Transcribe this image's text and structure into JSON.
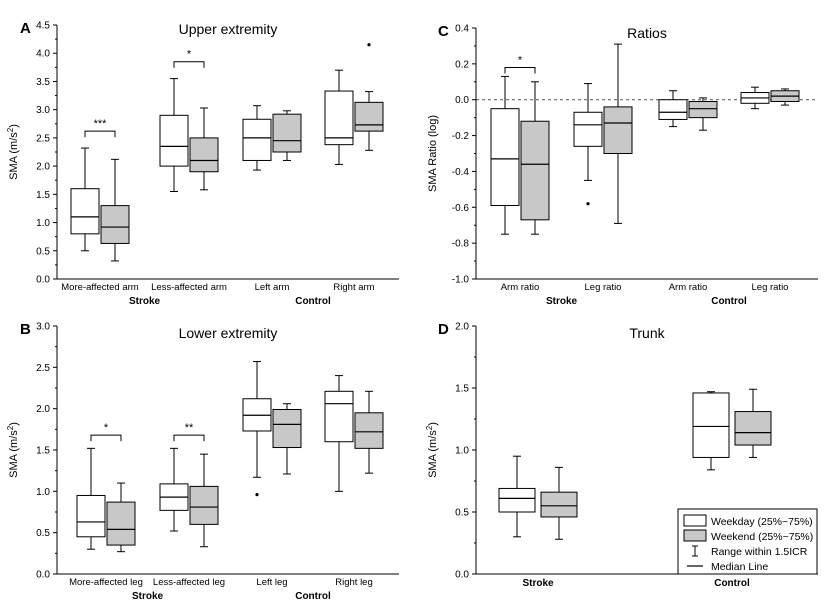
{
  "chart_data": [
    {
      "type": "box",
      "panel": "A",
      "title": "Upper extremity",
      "ylabel": "SMA (m/s",
      "ylabel_sup": "2",
      "ylabel_end": ")",
      "ylim": [
        0,
        4.5
      ],
      "yticks": [
        "0.0",
        "0.5",
        "1.0",
        "1.5",
        "2.0",
        "2.5",
        "3.0",
        "3.5",
        "4.0",
        "4.5"
      ],
      "categories": [
        "More-affected arm",
        "Less-affected arm",
        "Left arm",
        "Right arm"
      ],
      "groups": [
        {
          "label": "Stroke",
          "categories": [
            0,
            1
          ]
        },
        {
          "label": "Control",
          "categories": [
            2,
            3
          ]
        }
      ],
      "series": [
        {
          "name": "Weekday",
          "boxes": [
            {
              "min": 0.5,
              "q1": 0.8,
              "median": 1.1,
              "q3": 1.6,
              "max": 2.32,
              "outliers": []
            },
            {
              "min": 1.55,
              "q1": 2.0,
              "median": 2.35,
              "q3": 2.9,
              "max": 3.55,
              "outliers": []
            },
            {
              "min": 1.93,
              "q1": 2.1,
              "median": 2.5,
              "q3": 2.83,
              "max": 3.07,
              "outliers": []
            },
            {
              "min": 2.03,
              "q1": 2.38,
              "median": 2.5,
              "q3": 3.33,
              "max": 3.7,
              "outliers": []
            }
          ]
        },
        {
          "name": "Weekend",
          "boxes": [
            {
              "min": 0.32,
              "q1": 0.63,
              "median": 0.92,
              "q3": 1.3,
              "max": 2.12,
              "outliers": []
            },
            {
              "min": 1.58,
              "q1": 1.9,
              "median": 2.1,
              "q3": 2.5,
              "max": 3.03,
              "outliers": []
            },
            {
              "min": 2.1,
              "q1": 2.25,
              "median": 2.45,
              "q3": 2.92,
              "max": 2.98,
              "outliers": []
            },
            {
              "min": 2.28,
              "q1": 2.62,
              "median": 2.73,
              "q3": 3.13,
              "max": 3.32,
              "outliers": [
                4.15
              ]
            }
          ]
        }
      ],
      "significance": [
        {
          "category": 0,
          "label": "***",
          "y": 2.62
        },
        {
          "category": 1,
          "label": "*",
          "y": 3.85
        }
      ]
    },
    {
      "type": "box",
      "panel": "B",
      "title": "Lower extremity",
      "ylabel": "SMA (m/s",
      "ylabel_sup": "2",
      "ylabel_end": ")",
      "ylim": [
        0,
        3.0
      ],
      "yticks": [
        "0.0",
        "0.5",
        "1.0",
        "1.5",
        "2.0",
        "2.5",
        "3.0"
      ],
      "categories": [
        "More-affected leg",
        "Less-affected leg",
        "Left leg",
        "Right leg"
      ],
      "groups": [
        {
          "label": "Stroke",
          "categories": [
            0,
            1
          ]
        },
        {
          "label": "Control",
          "categories": [
            2,
            3
          ]
        }
      ],
      "series": [
        {
          "name": "Weekday",
          "boxes": [
            {
              "min": 0.3,
              "q1": 0.45,
              "median": 0.63,
              "q3": 0.95,
              "max": 1.52,
              "outliers": []
            },
            {
              "min": 0.52,
              "q1": 0.77,
              "median": 0.93,
              "q3": 1.09,
              "max": 1.52,
              "outliers": []
            },
            {
              "min": 1.17,
              "q1": 1.73,
              "median": 1.92,
              "q3": 2.12,
              "max": 2.57,
              "outliers": [
                0.96
              ]
            },
            {
              "min": 1.0,
              "q1": 1.6,
              "median": 2.06,
              "q3": 2.21,
              "max": 2.4,
              "outliers": []
            }
          ]
        },
        {
          "name": "Weekend",
          "boxes": [
            {
              "min": 0.27,
              "q1": 0.35,
              "median": 0.54,
              "q3": 0.87,
              "max": 1.1,
              "outliers": []
            },
            {
              "min": 0.33,
              "q1": 0.6,
              "median": 0.81,
              "q3": 1.06,
              "max": 1.45,
              "outliers": []
            },
            {
              "min": 1.21,
              "q1": 1.53,
              "median": 1.81,
              "q3": 1.99,
              "max": 2.06,
              "outliers": []
            },
            {
              "min": 1.22,
              "q1": 1.52,
              "median": 1.72,
              "q3": 1.95,
              "max": 2.21,
              "outliers": []
            }
          ]
        }
      ],
      "significance": [
        {
          "category": 0,
          "label": "*",
          "y": 1.68
        },
        {
          "category": 1,
          "label": "**",
          "y": 1.68
        }
      ]
    },
    {
      "type": "box",
      "panel": "C",
      "title": "Ratios",
      "ylabel": "SMA Ratio (log)",
      "ylim": [
        -1.0,
        0.4
      ],
      "yticks": [
        "-1.0",
        "-0.8",
        "-0.6",
        "-0.4",
        "-0.2",
        "0.0",
        "0.2",
        "0.4"
      ],
      "reference_line": 0.0,
      "categories": [
        "Arm ratio",
        "Leg ratio",
        "Arm ratio",
        "Leg ratio"
      ],
      "groups": [
        {
          "label": "Stroke",
          "categories": [
            0,
            1
          ]
        },
        {
          "label": "Control",
          "categories": [
            2,
            3
          ]
        }
      ],
      "series": [
        {
          "name": "Weekday",
          "boxes": [
            {
              "min": -0.75,
              "q1": -0.59,
              "median": -0.33,
              "q3": -0.05,
              "max": 0.13,
              "outliers": []
            },
            {
              "min": -0.45,
              "q1": -0.26,
              "median": -0.14,
              "q3": -0.07,
              "max": 0.09,
              "outliers": [
                -0.58
              ]
            },
            {
              "min": -0.15,
              "q1": -0.11,
              "median": -0.07,
              "q3": 0.0,
              "max": 0.05,
              "outliers": []
            },
            {
              "min": -0.05,
              "q1": -0.02,
              "median": 0.01,
              "q3": 0.04,
              "max": 0.07,
              "outliers": []
            }
          ]
        },
        {
          "name": "Weekend",
          "boxes": [
            {
              "min": -0.75,
              "q1": -0.67,
              "median": -0.36,
              "q3": -0.12,
              "max": 0.1,
              "outliers": []
            },
            {
              "min": -0.69,
              "q1": -0.3,
              "median": -0.13,
              "q3": -0.04,
              "max": 0.31,
              "outliers": []
            },
            {
              "min": -0.17,
              "q1": -0.1,
              "median": -0.05,
              "q3": -0.01,
              "max": 0.01,
              "outliers": []
            },
            {
              "min": -0.03,
              "q1": -0.01,
              "median": 0.02,
              "q3": 0.05,
              "max": 0.06,
              "outliers": []
            }
          ]
        }
      ],
      "significance": [
        {
          "category": 0,
          "label": "*",
          "y": 0.18
        }
      ]
    },
    {
      "type": "box",
      "panel": "D",
      "title": "Trunk",
      "ylabel": "SMA (m/s",
      "ylabel_sup": "2",
      "ylabel_end": ")",
      "ylim": [
        0,
        2.0
      ],
      "yticks": [
        "0.0",
        "0.5",
        "1.0",
        "1.5",
        "2.0"
      ],
      "categories": [
        "",
        ""
      ],
      "groups": [
        {
          "label": "Stroke",
          "categories": [
            0
          ]
        },
        {
          "label": "Control",
          "categories": [
            1
          ]
        }
      ],
      "series": [
        {
          "name": "Weekday",
          "boxes": [
            {
              "min": 0.3,
              "q1": 0.5,
              "median": 0.61,
              "q3": 0.69,
              "max": 0.95,
              "outliers": []
            },
            {
              "min": 0.84,
              "q1": 0.94,
              "median": 1.19,
              "q3": 1.46,
              "max": 1.47,
              "outliers": []
            }
          ]
        },
        {
          "name": "Weekend",
          "boxes": [
            {
              "min": 0.28,
              "q1": 0.46,
              "median": 0.55,
              "q3": 0.66,
              "max": 0.86,
              "outliers": []
            },
            {
              "min": 0.94,
              "q1": 1.04,
              "median": 1.14,
              "q3": 1.31,
              "max": 1.49,
              "outliers": []
            }
          ]
        }
      ],
      "significance": []
    }
  ],
  "legend": {
    "items": [
      {
        "type": "box-white",
        "label": "Weekday (25%~75%)"
      },
      {
        "type": "box-grey",
        "label": "Weekend (25%~75%)"
      },
      {
        "type": "whisker",
        "label": "Range within 1.5ICR"
      },
      {
        "type": "median",
        "label": "Median Line"
      }
    ]
  },
  "colors": {
    "weekday_fill": "#ffffff",
    "weekend_fill": "#c8c8c8",
    "stroke": "#000000",
    "reference_line": "#555555"
  }
}
